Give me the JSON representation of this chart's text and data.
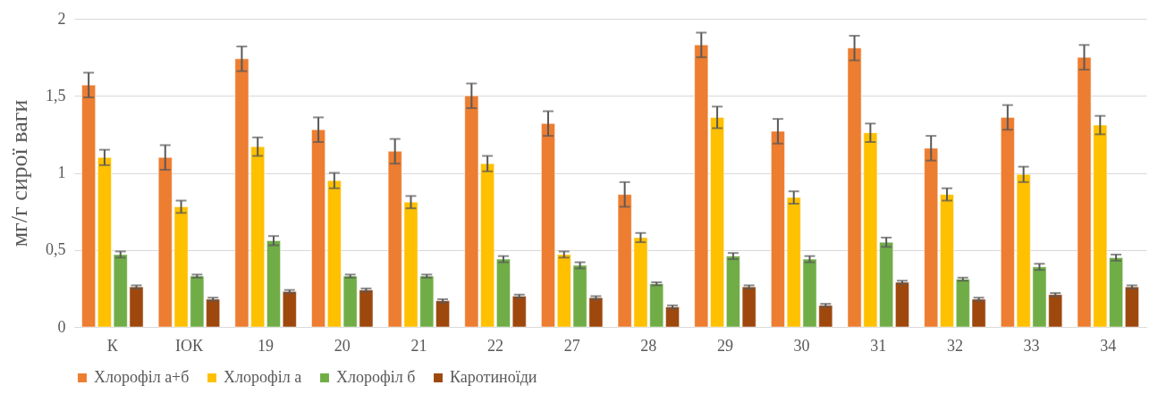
{
  "chart_data": {
    "type": "bar",
    "ylabel": "мг/г сирої ваги",
    "categories": [
      "К",
      "ІОК",
      "19",
      "20",
      "21",
      "22",
      "27",
      "28",
      "29",
      "30",
      "31",
      "32",
      "33",
      "34"
    ],
    "series": [
      {
        "name": "Хлорофіл а+б",
        "color": "#ed7d31",
        "values": [
          1.57,
          1.1,
          1.74,
          1.28,
          1.14,
          1.5,
          1.32,
          0.86,
          1.83,
          1.27,
          1.81,
          1.16,
          1.36,
          1.75
        ],
        "errors": [
          0.08,
          0.08,
          0.08,
          0.08,
          0.08,
          0.08,
          0.08,
          0.08,
          0.08,
          0.08,
          0.08,
          0.08,
          0.08,
          0.08
        ]
      },
      {
        "name": "Хлорофіл а",
        "color": "#ffc000",
        "values": [
          1.1,
          0.78,
          1.17,
          0.95,
          0.81,
          1.06,
          0.47,
          0.58,
          1.36,
          0.84,
          1.26,
          0.86,
          0.99,
          1.31
        ],
        "errors": [
          0.05,
          0.04,
          0.06,
          0.05,
          0.04,
          0.05,
          0.02,
          0.03,
          0.07,
          0.04,
          0.06,
          0.04,
          0.05,
          0.06
        ]
      },
      {
        "name": "Хлорофіл б",
        "color": "#70ad47",
        "values": [
          0.47,
          0.33,
          0.56,
          0.33,
          0.33,
          0.44,
          0.4,
          0.28,
          0.46,
          0.44,
          0.55,
          0.31,
          0.39,
          0.45
        ],
        "errors": [
          0.02,
          0.01,
          0.03,
          0.01,
          0.01,
          0.02,
          0.02,
          0.01,
          0.02,
          0.02,
          0.03,
          0.01,
          0.02,
          0.02
        ]
      },
      {
        "name": "Каротиноїди",
        "color": "#9e480e",
        "values": [
          0.26,
          0.18,
          0.23,
          0.24,
          0.17,
          0.2,
          0.19,
          0.13,
          0.26,
          0.14,
          0.29,
          0.18,
          0.21,
          0.26
        ],
        "errors": [
          0.01,
          0.01,
          0.01,
          0.01,
          0.01,
          0.01,
          0.01,
          0.01,
          0.01,
          0.01,
          0.01,
          0.01,
          0.01,
          0.01
        ]
      }
    ],
    "ylim": [
      0,
      2
    ],
    "yticks": [
      0,
      {
        "value": 0.5,
        "label": "0,5"
      },
      1,
      {
        "value": 1.5,
        "label": "1,5"
      },
      2
    ],
    "grid": "y",
    "legend": "bottom"
  }
}
